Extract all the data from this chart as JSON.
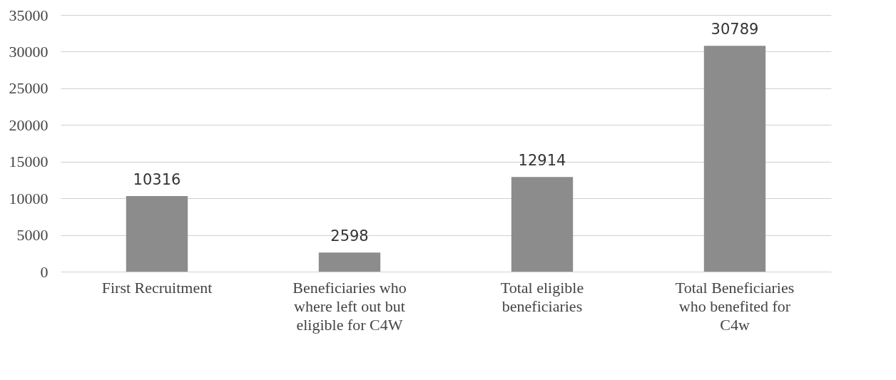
{
  "chart_data": {
    "type": "bar",
    "categories": [
      "First Recruitment",
      "Beneficiaries who where left out but eligible for C4W",
      "Total eligible beneficiaries",
      "Total Beneficiaries who benefited for C4w"
    ],
    "values": [
      10316,
      2598,
      12914,
      30789
    ],
    "color": "#8c8c8c",
    "ylim": [
      0,
      35000
    ],
    "yticks": [
      0,
      5000,
      10000,
      15000,
      20000,
      25000,
      30000,
      35000
    ],
    "grid": "y",
    "data_labels": true
  }
}
